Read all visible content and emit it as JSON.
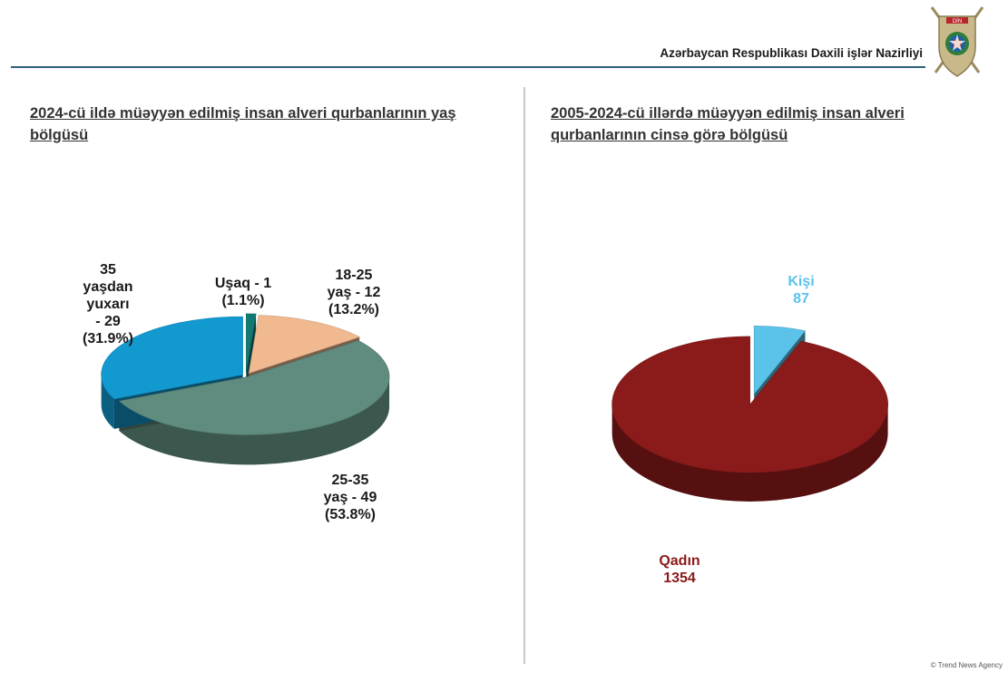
{
  "header": {
    "title": "Azərbaycan Respublikası Daxili işlər Nazirliyi",
    "emblem_icon": "ministry-emblem-icon",
    "emblem_text": "DİN"
  },
  "colors": {
    "rule": "#2f5f7a",
    "age_usaq": "#137a73",
    "age_18_25": "#f0b990",
    "age_25_35": "#5f8c7e",
    "age_35_plus": "#1299cf",
    "kisi": "#5bc3ea",
    "qadin": "#8b1a1a"
  },
  "chart_data": [
    {
      "type": "pie",
      "title": "2024-cü ildə müəyyən edilmiş insan alveri qurbanlarının yaş bölgüsü",
      "slices": [
        {
          "key": "usaq",
          "label": "Uşaq - 1\n(1.1%)",
          "value": 1,
          "percent": 1.1,
          "color": "#137a73"
        },
        {
          "key": "a18_25",
          "label": "18-25\nyaş - 12\n(13.2%)",
          "value": 12,
          "percent": 13.2,
          "color": "#f0b990"
        },
        {
          "key": "a25_35",
          "label": "25-35\nyaş - 49\n(53.8%)",
          "value": 49,
          "percent": 53.8,
          "color": "#5f8c7e"
        },
        {
          "key": "a35_plus",
          "label": "35\nyaşdan\nyuxarı\n- 29\n(31.9%)",
          "value": 29,
          "percent": 31.9,
          "color": "#1299cf"
        }
      ]
    },
    {
      "type": "pie",
      "title": "2005-2024-cü illərdə müəyyən edilmiş insan alveri qurbanlarının cinsə görə bölgüsü",
      "slices": [
        {
          "key": "kisi",
          "label": "Kişi\n87",
          "value": 87,
          "color": "#5bc3ea"
        },
        {
          "key": "qadin",
          "label": "Qadın\n1354",
          "value": 1354,
          "color": "#8b1a1a"
        }
      ]
    }
  ],
  "watermark": "© Trend News Agency"
}
